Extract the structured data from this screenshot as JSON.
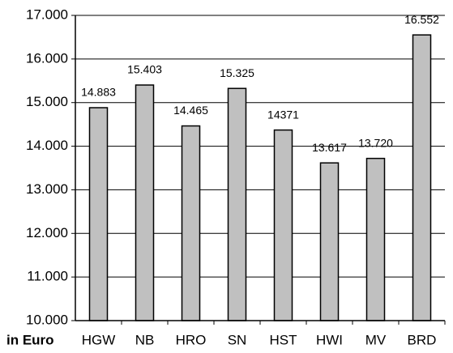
{
  "chart_data": {
    "type": "bar",
    "x_label": "in Euro",
    "categories": [
      "HGW",
      "NB",
      "HRO",
      "SN",
      "HST",
      "HWI",
      "MV",
      "BRD"
    ],
    "values": [
      14883,
      15403,
      14465,
      15325,
      14371,
      13617,
      13720,
      16552
    ],
    "value_labels": [
      "14.883",
      "15.403",
      "14.465",
      "15.325",
      "14371",
      "13.617",
      "13.720",
      "16.552"
    ],
    "color": "#c0c0c0",
    "ylim": [
      10000,
      17000
    ],
    "yticks": [
      {
        "value": 10000,
        "label": "10.000"
      },
      {
        "value": 11000,
        "label": "11.000"
      },
      {
        "value": 12000,
        "label": "12.000"
      },
      {
        "value": 13000,
        "label": "13.000"
      },
      {
        "value": 14000,
        "label": "14.000"
      },
      {
        "value": 15000,
        "label": "15.000"
      },
      {
        "value": 16000,
        "label": "16.000"
      },
      {
        "value": 17000,
        "label": "17.000"
      }
    ],
    "grid": true
  }
}
